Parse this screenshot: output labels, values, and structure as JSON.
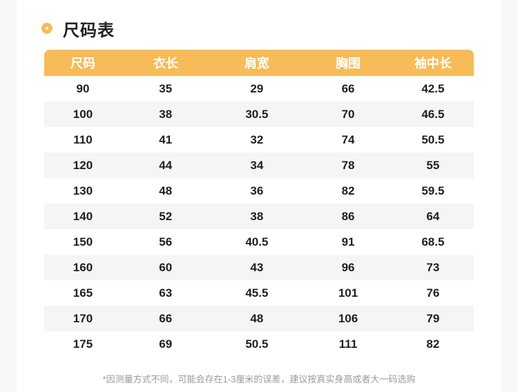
{
  "page": {
    "title": "尺码表",
    "footnote": "*因测量方式不同，可能会存在1-3厘米的误差，建议按真实身高或者大一码选购"
  },
  "colors": {
    "accent": "#F7BB59",
    "row_alt": "#F5F5F6",
    "gutter": "#F8F8F9",
    "text": "#1F1F1F",
    "footnote_text": "#9B9B9B"
  },
  "icons": {
    "title_bullet": "ring-icon"
  },
  "size_table": {
    "columns": [
      "尺码",
      "衣长",
      "肩宽",
      "胸围",
      "袖中长"
    ],
    "rows": [
      [
        "90",
        "35",
        "29",
        "66",
        "42.5"
      ],
      [
        "100",
        "38",
        "30.5",
        "70",
        "46.5"
      ],
      [
        "110",
        "41",
        "32",
        "74",
        "50.5"
      ],
      [
        "120",
        "44",
        "34",
        "78",
        "55"
      ],
      [
        "130",
        "48",
        "36",
        "82",
        "59.5"
      ],
      [
        "140",
        "52",
        "38",
        "86",
        "64"
      ],
      [
        "150",
        "56",
        "40.5",
        "91",
        "68.5"
      ],
      [
        "160",
        "60",
        "43",
        "96",
        "73"
      ],
      [
        "165",
        "63",
        "45.5",
        "101",
        "76"
      ],
      [
        "170",
        "66",
        "48",
        "106",
        "79"
      ],
      [
        "175",
        "69",
        "50.5",
        "111",
        "82"
      ]
    ]
  }
}
